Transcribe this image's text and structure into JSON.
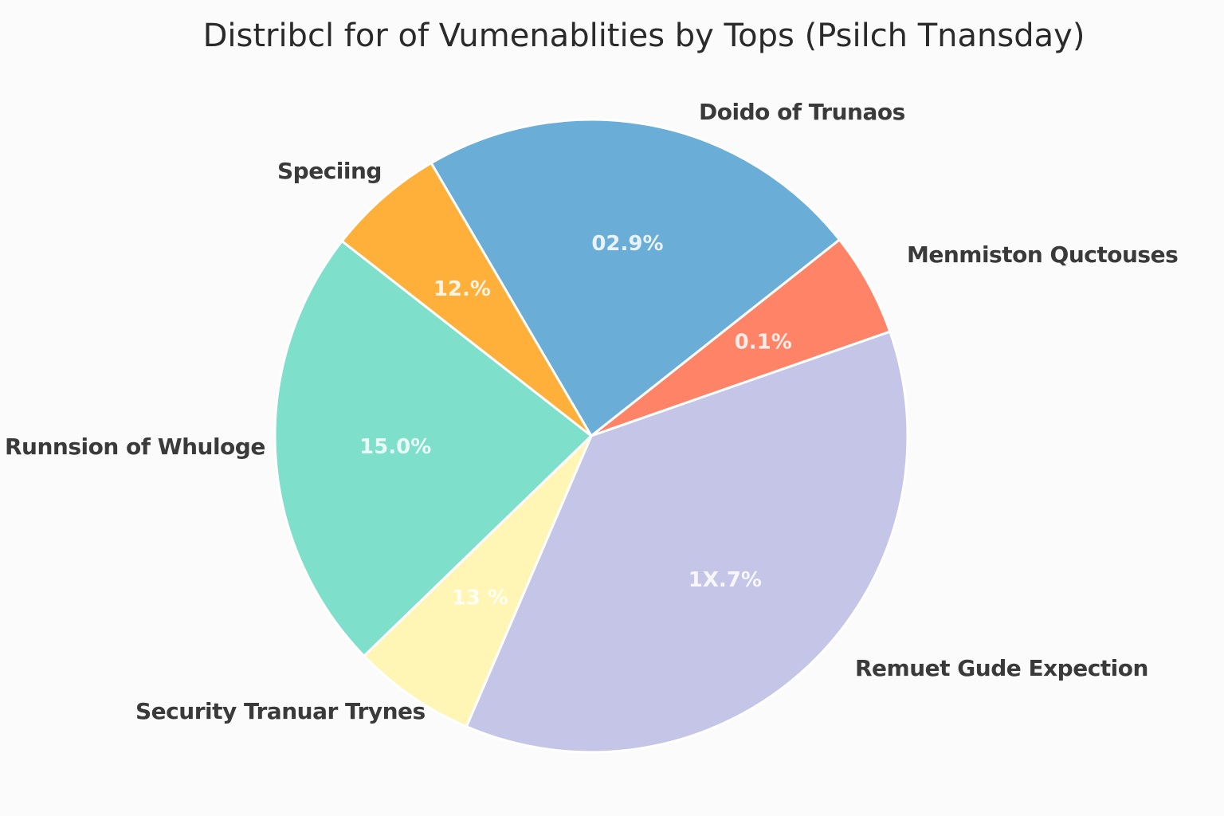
{
  "chart_data": {
    "type": "pie",
    "title": "Distribcl for of Vumenablities by Tops (Psilch Tnansday)",
    "start_angle_deg": -30.4,
    "direction": "clockwise",
    "slices": [
      {
        "label": "Doido of Trunaos",
        "value": 22.8,
        "pct_text": "02.9%",
        "color": "#6aaed8"
      },
      {
        "label": "Menmiston Quctouses",
        "value": 5.3,
        "pct_text": "0.1%",
        "color": "#ff8467"
      },
      {
        "label": "Remuet Gude Expection",
        "value": 36.8,
        "pct_text": "1X.7%",
        "color": "#c5c6e7"
      },
      {
        "label": "Security Tranuar Trynes",
        "value": 6.3,
        "pct_text": "13 %",
        "color": "#fff5b5"
      },
      {
        "label": "Runnsion of Whuloge",
        "value": 22.8,
        "pct_text": "15.0%",
        "color": "#7edfca"
      },
      {
        "label": "Speciing",
        "value": 6.0,
        "pct_text": "12.%",
        "color": "#ffb03b"
      }
    ]
  }
}
